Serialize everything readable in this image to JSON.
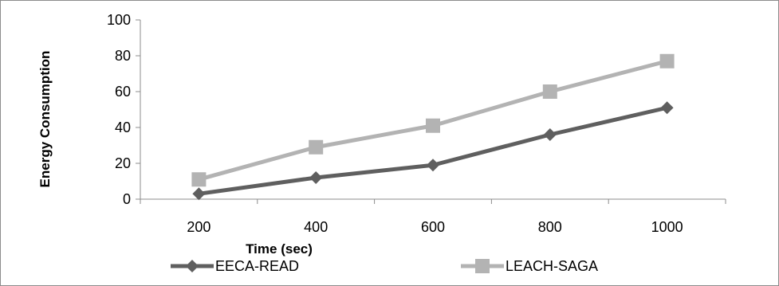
{
  "chart_data": {
    "type": "line",
    "title": "",
    "xlabel": "Time (sec)",
    "ylabel": "Energy Consumption",
    "categories": [
      "200",
      "400",
      "600",
      "800",
      "1000"
    ],
    "x": [
      200,
      400,
      600,
      800,
      1000
    ],
    "ylim": [
      0,
      100
    ],
    "yticks": [
      0,
      20,
      40,
      60,
      80,
      100
    ],
    "grid": false,
    "legend_position": "bottom",
    "series": [
      {
        "name": "EECA-READ",
        "values": [
          3,
          12,
          19,
          36,
          51
        ],
        "color": "#5f5f5f",
        "marker": "diamond"
      },
      {
        "name": "LEACH-SAGA",
        "values": [
          11,
          29,
          41,
          60,
          77
        ],
        "color": "#b3b3b3",
        "marker": "square"
      }
    ]
  }
}
